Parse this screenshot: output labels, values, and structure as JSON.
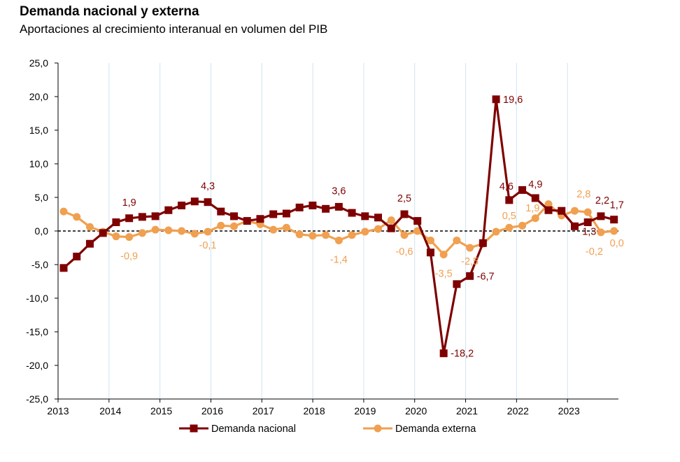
{
  "title": "Demanda nacional y externa",
  "subtitle": "Aportaciones al crecimiento interanual en volumen del PIB",
  "colors": {
    "nacional": "#7f0000",
    "externa": "#f0a050",
    "grid": "#cfe4f4"
  },
  "chart_data": {
    "type": "line",
    "title": "Demanda nacional y externa",
    "subtitle": "Aportaciones al crecimiento interanual en volumen del PIB",
    "ylim": [
      -25,
      25
    ],
    "yticks": [
      "25,0",
      "20,0",
      "15,0",
      "10,0",
      "5,0",
      "0,0",
      "-5,0",
      "-10,0",
      "-15,0",
      "-20,0",
      "-25,0"
    ],
    "xtick_labels": [
      "2013",
      "2014",
      "2015",
      "2016",
      "2017",
      "2018",
      "2019",
      "2020",
      "2021",
      "2022",
      "2023"
    ],
    "x": [
      "2013 I",
      "2013 II",
      "2013 III",
      "2013 IV",
      "2014 I",
      "2014 II",
      "2014 III",
      "2014 IV",
      "2015 I",
      "2015 II",
      "2015 III",
      "2015 IV",
      "2016 I",
      "2016 II",
      "2016 III",
      "2016 IV",
      "2017 I",
      "2017 II",
      "2017 III",
      "2017 IV",
      "2018 I",
      "2018 II",
      "2018 III",
      "2018 IV",
      "2019 I",
      "2019 II",
      "2019 III",
      "2019 IV",
      "2020 I",
      "2020 II",
      "2020 III",
      "2020 IV",
      "2021 I",
      "2021 II",
      "2021 III",
      "2021 IV",
      "2022 I",
      "2022 II",
      "2022 III",
      "2022 IV",
      "2023 I",
      "2023 II",
      "2023 III"
    ],
    "series": [
      {
        "name": "Demanda nacional",
        "values": [
          -5.5,
          -3.8,
          -1.9,
          -0.3,
          1.3,
          1.9,
          2.1,
          2.2,
          3.1,
          3.8,
          4.4,
          4.3,
          2.9,
          2.2,
          1.5,
          1.8,
          2.5,
          2.6,
          3.5,
          3.8,
          3.3,
          3.6,
          2.7,
          2.2,
          2.0,
          0.4,
          2.5,
          1.5,
          -3.2,
          -18.2,
          -7.9,
          -6.7,
          -1.8,
          19.6,
          4.6,
          6.1,
          4.9,
          3.1,
          3.0,
          0.7,
          1.3,
          2.2,
          1.7
        ]
      },
      {
        "name": "Demanda externa",
        "values": [
          2.9,
          2.1,
          0.6,
          -0.1,
          -0.8,
          -0.9,
          -0.3,
          0.2,
          0.1,
          0.0,
          -0.4,
          -0.1,
          0.8,
          0.7,
          1.5,
          1.0,
          0.2,
          0.5,
          -0.5,
          -0.7,
          -0.6,
          -1.4,
          -0.6,
          -0.1,
          0.3,
          1.6,
          -0.6,
          0.0,
          -1.4,
          -3.5,
          -1.4,
          -2.5,
          -1.9,
          -0.1,
          0.5,
          0.8,
          1.9,
          4.0,
          2.3,
          3.0,
          2.8,
          -0.2,
          0.0
        ]
      }
    ],
    "data_labels": {
      "nacional": [
        {
          "i": 5,
          "text": "1,9"
        },
        {
          "i": 11,
          "text": "4,3"
        },
        {
          "i": 21,
          "text": "3,6"
        },
        {
          "i": 26,
          "text": "2,5"
        },
        {
          "i": 29,
          "text": "-18,2"
        },
        {
          "i": 31,
          "text": "-6,7"
        },
        {
          "i": 33,
          "text": "19,6"
        },
        {
          "i": 34,
          "text": "4,6"
        },
        {
          "i": 36,
          "text": "4,9"
        },
        {
          "i": 40,
          "text": "1,3"
        },
        {
          "i": 41,
          "text": "2,2"
        },
        {
          "i": 42,
          "text": "1,7"
        }
      ],
      "externa": [
        {
          "i": 5,
          "text": "-0,9"
        },
        {
          "i": 11,
          "text": "-0,1"
        },
        {
          "i": 21,
          "text": "-1,4"
        },
        {
          "i": 26,
          "text": "-0,6"
        },
        {
          "i": 29,
          "text": "-3,5"
        },
        {
          "i": 31,
          "text": "-2,5"
        },
        {
          "i": 34,
          "text": "0,5"
        },
        {
          "i": 36,
          "text": "1,9"
        },
        {
          "i": 40,
          "text": "2,8"
        },
        {
          "i": 41,
          "text": "-0,2"
        },
        {
          "i": 42,
          "text": "0,0"
        }
      ]
    },
    "grid": true,
    "zero_line": "dashed",
    "legend_position": "bottom-center"
  }
}
